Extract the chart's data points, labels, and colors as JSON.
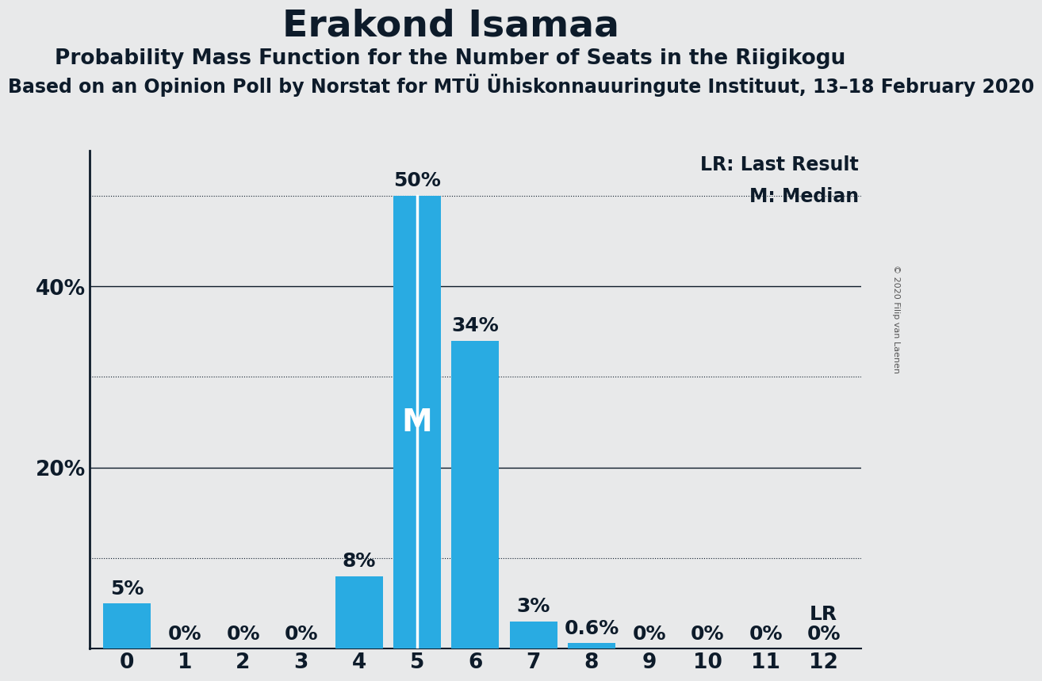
{
  "title": "Erakond Isamaa",
  "subtitle": "Probability Mass Function for the Number of Seats in the Riigikogu",
  "subtitle2": "Based on an Opinion Poll by Norstat for MTÜ Ühiskonnauuringute Instituut, 13–18 February 2020",
  "copyright": "© 2020 Filip van Laenen",
  "categories": [
    0,
    1,
    2,
    3,
    4,
    5,
    6,
    7,
    8,
    9,
    10,
    11,
    12
  ],
  "values": [
    5,
    0,
    0,
    0,
    8,
    50,
    34,
    3,
    0.6,
    0,
    0,
    0,
    0
  ],
  "bar_color": "#29ABE2",
  "median_bar": 5,
  "lr_bar": 12,
  "median_label": "M",
  "lr_label": "LR",
  "background_color": "#E8E9EA",
  "text_color": "#0d1b2a",
  "title_fontsize": 34,
  "subtitle_fontsize": 19,
  "subtitle2_fontsize": 17,
  "axis_fontsize": 19,
  "bar_label_fontsize": 18,
  "legend_fontsize": 17,
  "copyright_fontsize": 8,
  "ylim_max": 55,
  "solid_gridlines": [
    20,
    40
  ],
  "dotted_gridlines": [
    10,
    30,
    50
  ]
}
